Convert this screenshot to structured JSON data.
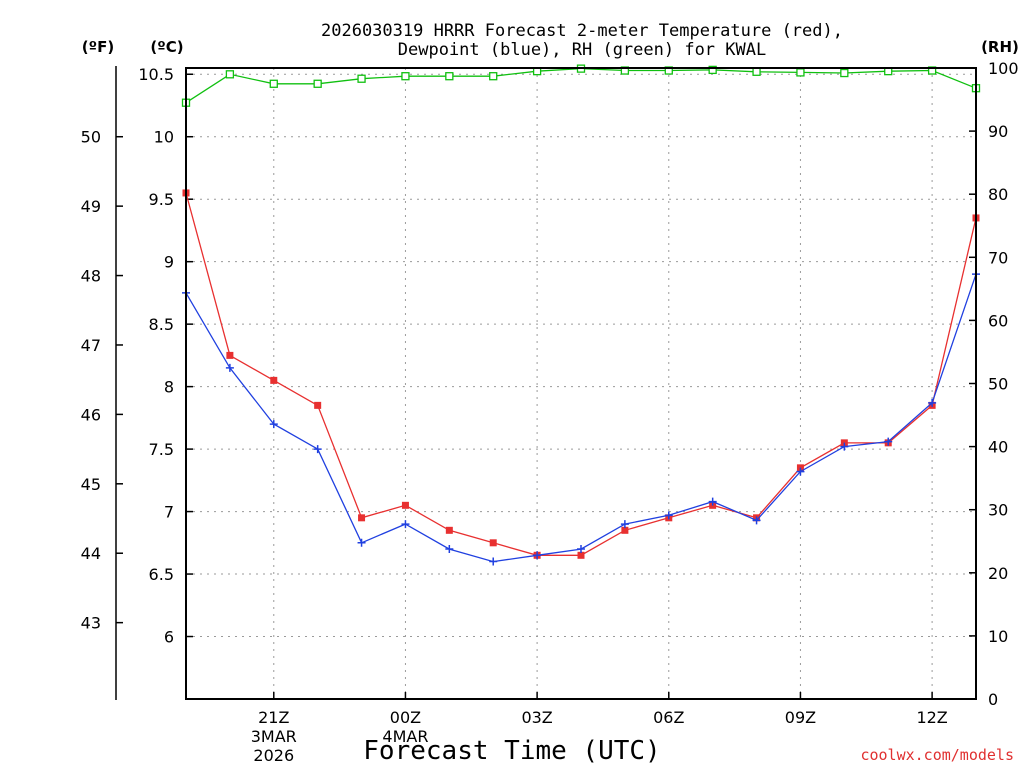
{
  "chart_data": {
    "type": "line",
    "title_line1": "2026030319 HRRR Forecast 2-meter Temperature (red),",
    "title_line2": "Dewpoint (blue), RH (green) for KWAL",
    "xlabel": "Forecast Time (UTC)",
    "credit": "coolwx.com/models",
    "units": {
      "f": "(ºF)",
      "c": "(ºC)",
      "rh": "(RH)"
    },
    "x_hours": [
      19,
      20,
      21,
      22,
      23,
      24,
      25,
      26,
      27,
      28,
      29,
      30,
      31,
      32,
      33,
      34,
      35,
      36,
      37
    ],
    "x_ticks": [
      {
        "hour": 21,
        "label": "21Z",
        "sub1": "3MAR",
        "sub2": "2026"
      },
      {
        "hour": 24,
        "label": "00Z",
        "sub1": "4MAR",
        "sub2": ""
      },
      {
        "hour": 27,
        "label": "03Z",
        "sub1": "",
        "sub2": ""
      },
      {
        "hour": 30,
        "label": "06Z",
        "sub1": "",
        "sub2": ""
      },
      {
        "hour": 33,
        "label": "09Z",
        "sub1": "",
        "sub2": ""
      },
      {
        "hour": 36,
        "label": "12Z",
        "sub1": "",
        "sub2": ""
      }
    ],
    "xlim": [
      19,
      37
    ],
    "ylim_c": [
      5.5,
      10.55
    ],
    "y_ticks_c": [
      6,
      6.5,
      7,
      7.5,
      8,
      8.5,
      9,
      9.5,
      10,
      10.5
    ],
    "y_ticks_f": [
      43,
      44,
      45,
      46,
      47,
      48,
      49,
      50
    ],
    "ylim_rh": [
      0,
      100
    ],
    "y_ticks_rh": [
      0,
      10,
      20,
      30,
      40,
      50,
      60,
      70,
      80,
      90,
      100
    ],
    "grid": true,
    "series": [
      {
        "name": "Temperature",
        "color": "#e83030",
        "marker": "filled-square",
        "axis": "c",
        "values": [
          9.55,
          8.25,
          8.05,
          7.85,
          6.95,
          7.05,
          6.85,
          6.75,
          6.65,
          6.65,
          6.85,
          6.95,
          7.05,
          6.95,
          7.35,
          7.55,
          7.55,
          7.85,
          9.35
        ]
      },
      {
        "name": "Dewpoint",
        "color": "#2040e0",
        "marker": "plus",
        "axis": "c",
        "values": [
          8.75,
          8.15,
          7.7,
          7.5,
          6.75,
          6.9,
          6.7,
          6.6,
          6.65,
          6.7,
          6.9,
          6.97,
          7.08,
          6.93,
          7.32,
          7.52,
          7.56,
          7.87,
          8.9
        ]
      },
      {
        "name": "RH",
        "color": "#10c010",
        "marker": "open-square",
        "axis": "rh",
        "values": [
          94.5,
          99,
          97.5,
          97.5,
          98.3,
          98.7,
          98.7,
          98.7,
          99.5,
          99.9,
          99.6,
          99.6,
          99.7,
          99.4,
          99.3,
          99.2,
          99.5,
          99.6,
          96.8
        ]
      }
    ]
  }
}
